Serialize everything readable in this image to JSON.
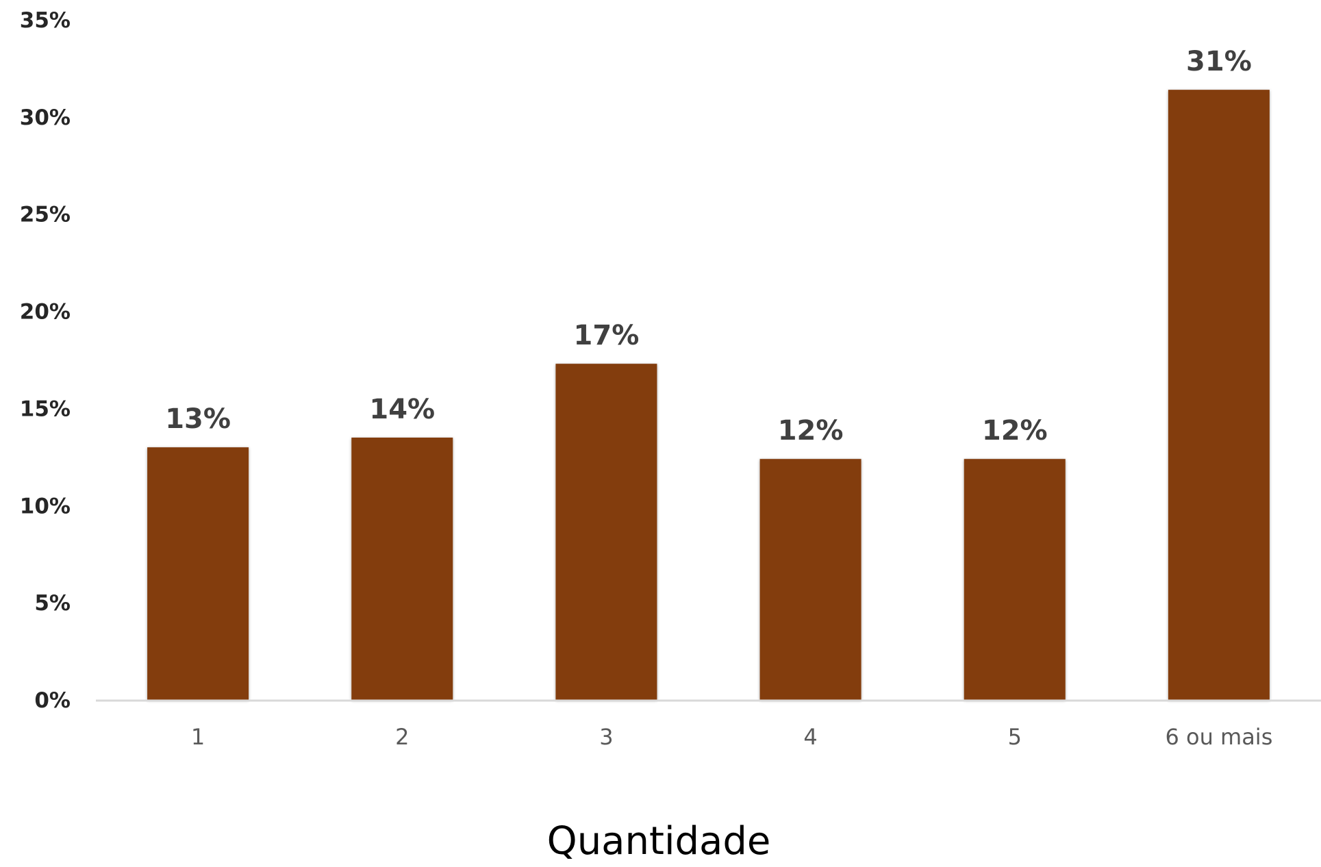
{
  "chart_data": {
    "type": "bar",
    "categories": [
      "1",
      "2",
      "3",
      "4",
      "5",
      "6 ou mais"
    ],
    "values": [
      13,
      13.5,
      17.3,
      12.4,
      12.4,
      31.4
    ],
    "data_labels": [
      "13%",
      "14%",
      "17%",
      "12%",
      "12%",
      "31%"
    ],
    "y_ticks": [
      "0%",
      "5%",
      "10%",
      "15%",
      "20%",
      "25%",
      "30%",
      "35%"
    ],
    "ylim": [
      0,
      35
    ],
    "xlabel": "Quantidade",
    "ylabel": "",
    "title": "",
    "grid": false,
    "legend": "none",
    "bar_color": "#833C0C",
    "axis_color": "#D9D9D9"
  }
}
